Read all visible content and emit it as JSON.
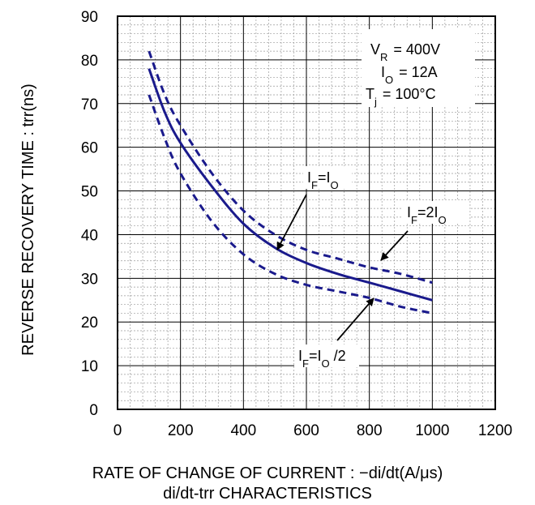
{
  "chart_data": {
    "type": "line",
    "title": "di/dt-trr  CHARACTERISTICS",
    "xlabel": "RATE OF CHANGE OF CURRENT : −di/dt(A/μs)",
    "ylabel": "REVERSE RECOVERY  TIME : trr(ns)",
    "xlim": [
      0,
      1200
    ],
    "ylim": [
      0,
      90
    ],
    "x_ticks": [
      "0",
      "200",
      "400",
      "600",
      "800",
      "1000",
      "1200"
    ],
    "y_ticks": [
      "0",
      "10",
      "20",
      "30",
      "40",
      "50",
      "60",
      "70",
      "80",
      "90"
    ],
    "grid": true,
    "conditions": {
      "vr": "V_R = 400V",
      "io": "I_O = 12A",
      "tj": "T_j = 100°C"
    },
    "series": [
      {
        "name": "I_F=2I_O",
        "style": "dashed",
        "color": "#1a1a8c",
        "x": [
          100,
          150,
          200,
          300,
          400,
          500,
          600,
          700,
          800,
          900,
          1000
        ],
        "y": [
          82,
          72,
          65,
          54,
          45.5,
          40,
          36.5,
          34.5,
          32.5,
          31,
          29
        ]
      },
      {
        "name": "I_F=I_O",
        "style": "solid",
        "color": "#1a1a8c",
        "x": [
          100,
          150,
          200,
          300,
          400,
          500,
          600,
          700,
          800,
          900,
          1000
        ],
        "y": [
          78,
          68,
          61,
          51,
          42.5,
          37,
          33.5,
          31,
          29,
          27,
          25
        ]
      },
      {
        "name": "I_F=I_O /2",
        "style": "dashed",
        "color": "#1a1a8c",
        "x": [
          100,
          150,
          200,
          300,
          400,
          500,
          600,
          700,
          800,
          900,
          1000
        ],
        "y": [
          72,
          62,
          54,
          43,
          35.5,
          31,
          28.5,
          27,
          25.5,
          23.5,
          22
        ]
      }
    ]
  }
}
